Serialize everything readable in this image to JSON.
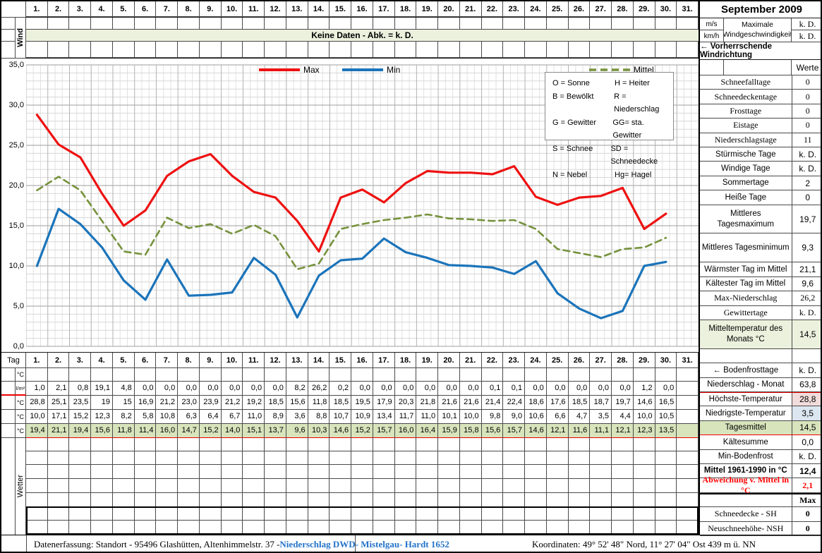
{
  "title": "September 2009",
  "days": [
    "1.",
    "2.",
    "3.",
    "4.",
    "5.",
    "6.",
    "7.",
    "8.",
    "9.",
    "10.",
    "11.",
    "12.",
    "13.",
    "14.",
    "15.",
    "16.",
    "17.",
    "18.",
    "19.",
    "20.",
    "21.",
    "22.",
    "23.",
    "24.",
    "25.",
    "26.",
    "27.",
    "28.",
    "29.",
    "30.",
    "31."
  ],
  "wind": {
    "row_label": "Wind",
    "no_data_banner": "Keine Daten - Abk. = k. D.",
    "unit_ms": "m/s",
    "unit_kmh": "km/h",
    "max_wind_label": "Maximale Windgeschwindigkeit",
    "max_wind_ms": "k. D.",
    "max_wind_kmh": "k. D.",
    "direction_label": "←  Vorherrschende Windrichtung"
  },
  "chart_data": {
    "type": "line",
    "title": "",
    "xlabel": "Tag",
    "ylabel": "°C",
    "x": [
      1,
      2,
      3,
      4,
      5,
      6,
      7,
      8,
      9,
      10,
      11,
      12,
      13,
      14,
      15,
      16,
      17,
      18,
      19,
      20,
      21,
      22,
      23,
      24,
      25,
      26,
      27,
      28,
      29,
      30
    ],
    "ylim": [
      0,
      35
    ],
    "ytick_step": 5,
    "ytick_labels": [
      "0,0",
      "5,0",
      "10,0",
      "15,0",
      "20,0",
      "25,0",
      "30,0",
      "35,0"
    ],
    "grid": true,
    "legend_position": "top",
    "series": [
      {
        "name": "Max",
        "color": "#ee1111",
        "style": "solid",
        "values": [
          28.8,
          25.1,
          23.5,
          19,
          15,
          16.9,
          21.2,
          23.0,
          23.9,
          21.2,
          19.2,
          18.5,
          15.6,
          11.8,
          18.5,
          19.5,
          17.9,
          20.3,
          21.8,
          21.6,
          21.6,
          21.4,
          22.4,
          18.6,
          17.6,
          18.5,
          18.7,
          19.7,
          14.6,
          16.5
        ]
      },
      {
        "name": "Min",
        "color": "#1b74ba",
        "style": "solid",
        "values": [
          10.0,
          17.1,
          15.2,
          12.3,
          8.2,
          5.8,
          10.8,
          6.3,
          6.4,
          6.7,
          11.0,
          8.9,
          3.6,
          8.8,
          10.7,
          10.9,
          13.4,
          11.7,
          11.0,
          10.1,
          10.0,
          9.8,
          9.0,
          10.6,
          6.6,
          4.7,
          3.5,
          4.4,
          10.0,
          10.5
        ]
      },
      {
        "name": "Mittel",
        "color": "#76923c",
        "style": "dashed",
        "values": [
          19.4,
          21.1,
          19.4,
          15.6,
          11.8,
          11.4,
          16.0,
          14.7,
          15.2,
          14.0,
          15.1,
          13.7,
          9.6,
          10.3,
          14.6,
          15.2,
          15.7,
          16.0,
          16.4,
          15.9,
          15.8,
          15.6,
          15.7,
          14.6,
          12.1,
          11.6,
          11.1,
          12.1,
          12.3,
          13.5
        ]
      }
    ]
  },
  "abbrev_legend": [
    {
      "left": "O = Sonne",
      "right": "H = Heiter"
    },
    {
      "left": "B = Bewölkt",
      "right": "R = Niederschlag"
    },
    {
      "left": "G = Gewitter",
      "right": "GG= sta. Gewitter"
    },
    {
      "left": "S = Schnee",
      "right": "SD = Schneedecke"
    },
    {
      "left": "N = Nebel",
      "right": "Hg= Hagel"
    }
  ],
  "table": {
    "day_label": "Tag",
    "weather_label": "Wetter",
    "empty_row_count": 7,
    "rows": [
      {
        "name": "temp-row-empty",
        "unit": "°C",
        "values": [
          "",
          "",
          "",
          "",
          "",
          "",
          "",
          "",
          "",
          "",
          "",
          "",
          "",
          "",
          "",
          "",
          "",
          "",
          "",
          "",
          "",
          "",
          "",
          "",
          "",
          "",
          "",
          "",
          "",
          "",
          ""
        ]
      },
      {
        "name": "precip-row",
        "unit": "l/m²",
        "red_bottom_label": true,
        "values": [
          "1,0",
          "2,1",
          "0,8",
          "19,1",
          "4,8",
          "0,0",
          "0,0",
          "0,0",
          "0,0",
          "0,0",
          "0,0",
          "0,0",
          "8,2",
          "26,2",
          "0,2",
          "0,0",
          "0,0",
          "0,0",
          "0,0",
          "0,0",
          "0,0",
          "0,1",
          "0,1",
          "0,0",
          "0,0",
          "0,0",
          "0,0",
          "0,0",
          "1,2",
          "0,0",
          ""
        ]
      },
      {
        "name": "tmax-row",
        "unit": "°C",
        "values": [
          "28,8",
          "25,1",
          "23,5",
          "19",
          "15",
          "16,9",
          "21,2",
          "23,0",
          "23,9",
          "21,2",
          "19,2",
          "18,5",
          "15,6",
          "11,8",
          "18,5",
          "19,5",
          "17,9",
          "20,3",
          "21,8",
          "21,6",
          "21,6",
          "21,4",
          "22,4",
          "18,6",
          "17,6",
          "18,5",
          "18,7",
          "19,7",
          "14,6",
          "16,5",
          ""
        ]
      },
      {
        "name": "tmin-row",
        "unit": "°C",
        "values": [
          "10,0",
          "17,1",
          "15,2",
          "12,3",
          "8,2",
          "5,8",
          "10,8",
          "6,3",
          "6,4",
          "6,7",
          "11,0",
          "8,9",
          "3,6",
          "8,8",
          "10,7",
          "10,9",
          "13,4",
          "11,7",
          "11,0",
          "10,1",
          "10,0",
          "9,8",
          "9,0",
          "10,6",
          "6,6",
          "4,7",
          "3,5",
          "4,4",
          "10,0",
          "10,5",
          ""
        ]
      },
      {
        "name": "tmean-row",
        "unit": "°C",
        "highlight": "#d8e4bc",
        "red_bottom": true,
        "values": [
          "19,4",
          "21,1",
          "19,4",
          "15,6",
          "11,8",
          "11,4",
          "16,0",
          "14,7",
          "15,2",
          "14,0",
          "15,1",
          "13,7",
          "9,6",
          "10,3",
          "14,6",
          "15,2",
          "15,7",
          "16,0",
          "16,4",
          "15,9",
          "15,8",
          "15,6",
          "15,7",
          "14,6",
          "12,1",
          "11,6",
          "11,1",
          "12,1",
          "12,3",
          "13,5",
          ""
        ]
      }
    ]
  },
  "sidebar": {
    "werte_header": "Werte",
    "rows": [
      {
        "label": "Schneefalltage",
        "value": "0",
        "serif": true
      },
      {
        "label": "Schneedeckentage",
        "value": "0",
        "serif": true
      },
      {
        "label": "Frosttage",
        "value": "0",
        "serif": true
      },
      {
        "label": "Eistage",
        "value": "0",
        "serif": true
      },
      {
        "label": "Niederschlagstage",
        "value": "11",
        "serif": true
      },
      {
        "label": "Stürmische Tage",
        "value": "k. D."
      },
      {
        "label": "Windige Tage",
        "value": "k. D."
      },
      {
        "label": "Sommertage",
        "value": "2"
      },
      {
        "label": "Heiße Tage",
        "value": "0"
      },
      {
        "label": "Mittleres Tagesmaximum",
        "value": "19,7",
        "h": 2
      },
      {
        "label": "Mittleres Tagesminimum",
        "value": "9,3",
        "h": 2
      },
      {
        "label": "Wärmster Tag im Mittel",
        "value": "21,1"
      },
      {
        "label": "Kältester Tag im Mittel",
        "value": "9,6"
      },
      {
        "label": "Max-Niederschlag",
        "value": "26,2",
        "serif": true
      },
      {
        "label": "Gewittertage",
        "value": "k. D.",
        "serif": true
      },
      {
        "label": "Mitteltemperatur des Monats °C",
        "value": "14,5",
        "h": 2,
        "bg": "#ebf1dd",
        "vbg": "#ebf1dd"
      },
      {
        "label": "",
        "value": "",
        "empty": true
      },
      {
        "label": "← Bodenfrosttage",
        "value": "k. D."
      },
      {
        "label": "Niederschlag - Monat",
        "value": "63,8"
      },
      {
        "label": "Höchste-Temperatur",
        "value": "28,8",
        "vbg": "#f2dcdb",
        "red_top": true
      },
      {
        "label": "Niedrigste-Temperatur",
        "value": "3,5",
        "vbg": "#dce6f1"
      },
      {
        "label": "Tagesmittel",
        "value": "14,5",
        "bg": "#d8e4bc",
        "vbg": "#d8e4bc",
        "red_bottom": true
      },
      {
        "label": "Kältesumme",
        "value": "0,0"
      },
      {
        "label": "Min-Bodenfrost",
        "value": "k. D."
      },
      {
        "label": "Mittel 1961-1990 in °C",
        "value": "12,4",
        "bold": true
      },
      {
        "label": "Abweichung v. Mittel in °C",
        "value": "2,1",
        "bold": true,
        "serif": true,
        "color": "#ff0000"
      },
      {
        "label": "",
        "value": "Max",
        "vbold": true,
        "serif": true,
        "thick_top": true
      },
      {
        "label": "Schneedecke -  SH",
        "value": "0",
        "serif": true,
        "vbold": true
      },
      {
        "label": "Neuschneehöhe- NSH",
        "value": "0",
        "serif": true,
        "vbold": true
      }
    ]
  },
  "footer": {
    "left": "Datenerfassung:  Standort -  95496  Glashütten, Altenhimmelstr. 37 - ",
    "link": "Niederschlag DWD- Mistelgau- Hardt 1652",
    "right": "Koordinaten:  49° 52' 48\" Nord,   11° 27' 04\" Ost   439 m ü. NN",
    "link_color": "#2373c8"
  }
}
